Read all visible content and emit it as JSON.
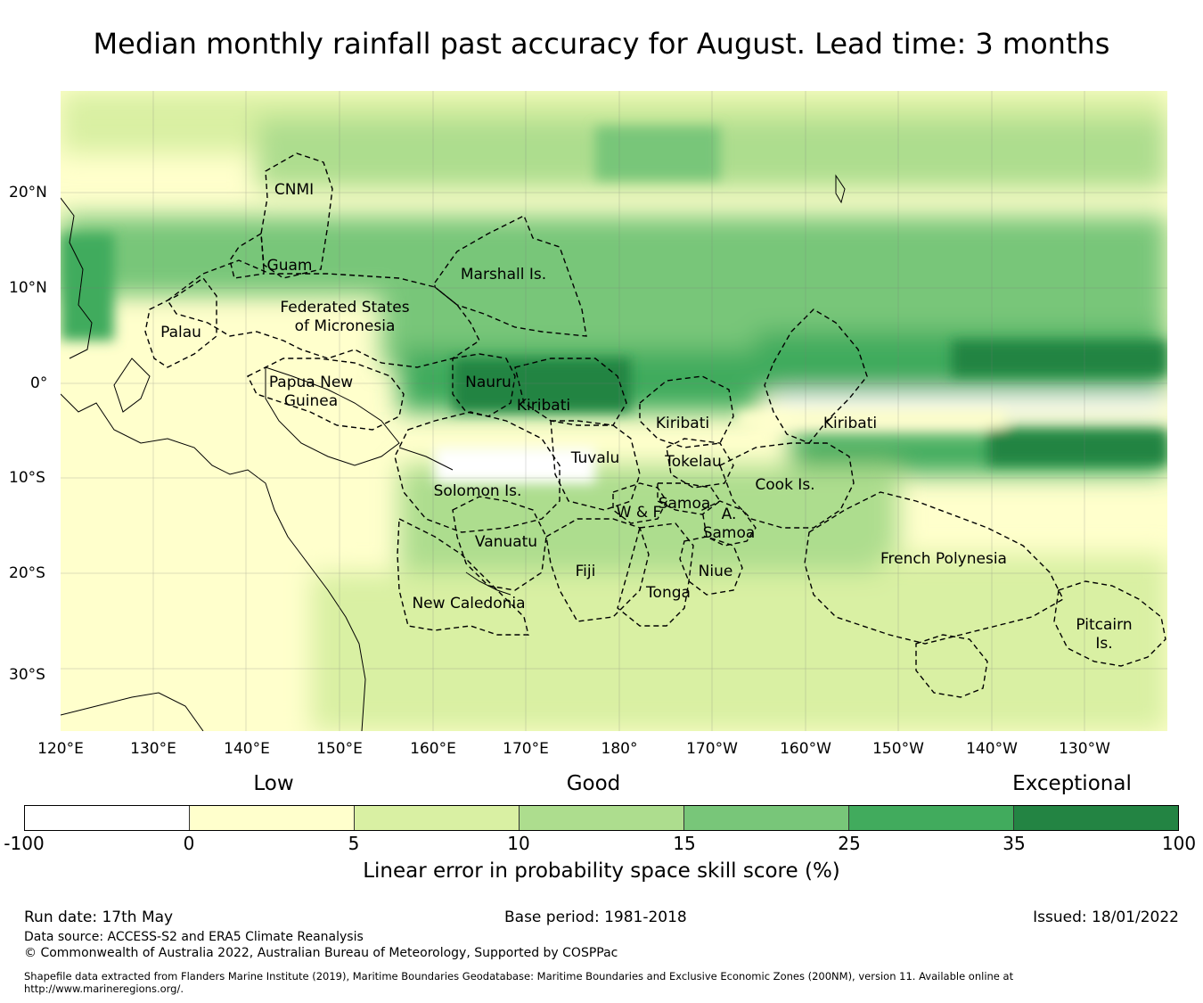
{
  "title": "Median monthly rainfall past accuracy for August. Lead time: 3 months",
  "map": {
    "longitude_ticks": [
      "120°E",
      "130°E",
      "140°E",
      "150°E",
      "160°E",
      "170°E",
      "180°",
      "170°W",
      "160°W",
      "150°W",
      "140°W",
      "130°W"
    ],
    "latitude_ticks": [
      "20°N",
      "10°N",
      "0°",
      "10°S",
      "20°S",
      "30°S"
    ],
    "regions": [
      {
        "name": "CNMI"
      },
      {
        "name": "Guam"
      },
      {
        "name": "Marshall Is."
      },
      {
        "name": "Federated States of Micronesia",
        "lines": [
          "Federated States",
          "of Micronesia"
        ]
      },
      {
        "name": "Palau"
      },
      {
        "name": "Papua New Guinea",
        "lines": [
          "Papua New",
          "Guinea"
        ]
      },
      {
        "name": "Nauru"
      },
      {
        "name": "Kiribati (Gilbert)",
        "lines": [
          "Kiribati"
        ]
      },
      {
        "name": "Kiribati (Phoenix)",
        "lines": [
          "Kiribati"
        ]
      },
      {
        "name": "Kiribati (Line)",
        "lines": [
          "Kiribati"
        ]
      },
      {
        "name": "Tuvalu"
      },
      {
        "name": "Tokelau"
      },
      {
        "name": "Cook Is."
      },
      {
        "name": "Solomon Is."
      },
      {
        "name": "Samoa"
      },
      {
        "name": "W & F"
      },
      {
        "name": "A. Samoa",
        "lines": [
          "A.",
          "Samoa"
        ]
      },
      {
        "name": "Vanuatu"
      },
      {
        "name": "Fiji"
      },
      {
        "name": "Niue"
      },
      {
        "name": "Tonga"
      },
      {
        "name": "New Caledonia"
      },
      {
        "name": "French Polynesia"
      },
      {
        "name": "Pitcairn Is.",
        "lines": [
          "Pitcairn",
          "Is."
        ]
      }
    ]
  },
  "colorbar": {
    "categories": [
      "Low",
      "Good",
      "Exceptional"
    ],
    "ticks": [
      "-100",
      "0",
      "5",
      "10",
      "15",
      "25",
      "35",
      "100"
    ],
    "colors": [
      "#ffffff",
      "#ffffcc",
      "#d9f0a3",
      "#addd8e",
      "#78c679",
      "#41ab5d",
      "#238443"
    ],
    "label": "Linear error in probability space skill score (%)"
  },
  "footer": {
    "run_date": "Run date: 17th May",
    "base_period": "Base period: 1981-2018",
    "issued": "Issued: 18/01/2022",
    "data_source": "Data source: ACCESS-S2 and ERA5 Climate Reanalysis",
    "copyright": "© Commonwealth of Australia 2022, Australian Bureau of Meteorology, Supported by COSPPac",
    "shapefile_line1": "Shapefile data extracted from Flanders Marine Institute (2019), Maritime Boundaries Geodatabase: Maritime Boundaries and Exclusive Economic Zones (200NM), version 11. Available online at",
    "shapefile_line2": "http://www.marineregions.org/."
  }
}
